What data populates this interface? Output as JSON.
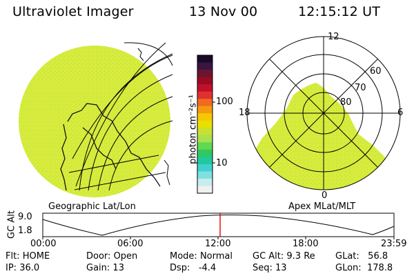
{
  "header": {
    "title": "Ultraviolet Imager",
    "date": "13 Nov 00",
    "time": "12:15:12 UT"
  },
  "colorbar": {
    "unit_label": "photon cm⁻²s⁻¹",
    "tick_labels": [
      "100",
      "10"
    ],
    "ramp_colors": [
      "#1a0a2a",
      "#3a1540",
      "#6a1530",
      "#9a0a20",
      "#c0102a",
      "#e03030",
      "#f06a20",
      "#f59a10",
      "#f6c800",
      "#e8e000",
      "#c8e030",
      "#a8e050",
      "#60d850",
      "#30c860",
      "#20c8a0",
      "#40d0d0",
      "#80e0e0",
      "#c8ecec",
      "#f0f0f0"
    ]
  },
  "left_panel": {
    "caption": "Geographic Lat/Lon",
    "fill_color": "#d8ec3c"
  },
  "right_panel": {
    "caption": "Apex MLat/MLT",
    "mlt_labels": {
      "top": "12",
      "left": "18",
      "right": "6",
      "bottom": "0"
    },
    "lat_labels": [
      "60",
      "70",
      "80"
    ],
    "fill_color": "#d8ec3c"
  },
  "timeline": {
    "axis_label": "GC Alt",
    "y_ticks": [
      "9.0",
      "1.8"
    ],
    "x_ticks": [
      "00:00",
      "06:00",
      "12:00",
      "18:00",
      "23:59"
    ],
    "marker_color": "#e00000"
  },
  "status": {
    "flt": {
      "label": "Flt:",
      "value": "HOME"
    },
    "ip": {
      "label": "IP:",
      "value": "36.0"
    },
    "door": {
      "label": "Door:",
      "value": "Open"
    },
    "gain": {
      "label": "Gain:",
      "value": "13"
    },
    "mode": {
      "label": "Mode:",
      "value": "Normal"
    },
    "dsp": {
      "label": "Dsp:",
      "value": "-4.4"
    },
    "gcalt": {
      "label": "GC Alt:",
      "value": "9.3 Re"
    },
    "seq": {
      "label": "Seq:",
      "value": "13"
    },
    "glat": {
      "label": "GLat:",
      "value": "56.8"
    },
    "glon": {
      "label": "GLon:",
      "value": "178.8"
    }
  }
}
